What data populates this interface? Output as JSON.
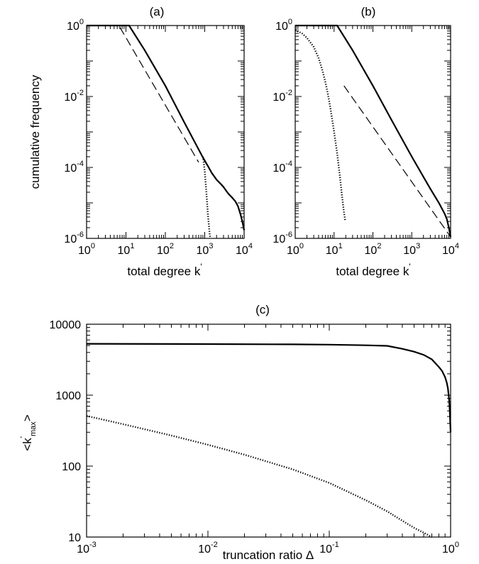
{
  "chart_data": [
    {
      "type": "line",
      "title": "(a)",
      "xlabel": "total degree k",
      "xlabel_prime": "'",
      "ylabel": "cumulative frequency",
      "x_scale": "log",
      "y_scale": "log",
      "xlim": [
        1,
        10000
      ],
      "ylim": [
        1e-06,
        1
      ],
      "x_ticks": [
        {
          "base": "10",
          "exp": "0"
        },
        {
          "base": "10",
          "exp": "1"
        },
        {
          "base": "10",
          "exp": "2"
        },
        {
          "base": "10",
          "exp": "3"
        },
        {
          "base": "10",
          "exp": "4"
        }
      ],
      "y_ticks": [
        {
          "base": "10",
          "exp": "0"
        },
        {
          "base": "10",
          "exp": "-2"
        },
        {
          "base": "10",
          "exp": "-4"
        },
        {
          "base": "10",
          "exp": "-6"
        }
      ],
      "grid": false,
      "series": [
        {
          "style": "solid",
          "x": [
            1,
            12,
            30,
            100,
            300,
            900,
            1200,
            1500,
            2000,
            2500,
            3000,
            3500,
            4000,
            5000,
            6000,
            7000,
            8000,
            9000,
            10000
          ],
          "y": [
            1,
            1,
            0.2,
            0.02,
            0.0019,
            0.00019,
            0.00011,
            7e-05,
            4.5e-05,
            3.5e-05,
            2.8e-05,
            2.2e-05,
            1.8e-05,
            1.4e-05,
            1.1e-05,
            8e-06,
            5e-06,
            3e-06,
            1.7e-06
          ]
        },
        {
          "style": "dotted",
          "x": [
            900,
            1000,
            1100,
            1200,
            1300,
            1350,
            1400
          ],
          "y": [
            0.0002,
            8e-05,
            2e-05,
            5e-06,
            1.8e-06,
            1.2e-06,
            1e-06
          ]
        },
        {
          "style": "dashed",
          "x": [
            7,
            700
          ],
          "y": [
            0.9,
            0.00014
          ]
        }
      ]
    },
    {
      "type": "line",
      "title": "(b)",
      "xlabel": "total degree k",
      "xlabel_prime": "'",
      "ylabel": "",
      "x_scale": "log",
      "y_scale": "log",
      "xlim": [
        1,
        10000
      ],
      "ylim": [
        1e-06,
        1
      ],
      "x_ticks": [
        {
          "base": "10",
          "exp": "0"
        },
        {
          "base": "10",
          "exp": "1"
        },
        {
          "base": "10",
          "exp": "2"
        },
        {
          "base": "10",
          "exp": "3"
        },
        {
          "base": "10",
          "exp": "4"
        }
      ],
      "y_ticks": [
        {
          "base": "10",
          "exp": "0"
        },
        {
          "base": "10",
          "exp": "-2"
        },
        {
          "base": "10",
          "exp": "-4"
        },
        {
          "base": "10",
          "exp": "-6"
        }
      ],
      "grid": false,
      "series": [
        {
          "style": "solid",
          "x": [
            1,
            12,
            30,
            100,
            300,
            1000,
            3000,
            5000,
            7000,
            8000,
            9000,
            10000
          ],
          "y": [
            1,
            1,
            0.2,
            0.02,
            0.0022,
            0.0002,
            2.5e-05,
            1e-05,
            5e-06,
            3.5e-06,
            2e-06,
            1.1e-06
          ]
        },
        {
          "style": "dotted",
          "x": [
            1,
            1.5,
            2,
            3,
            4,
            5,
            6,
            7,
            8,
            9,
            10,
            12,
            14,
            16,
            18,
            19.5
          ],
          "y": [
            0.75,
            0.6,
            0.45,
            0.25,
            0.12,
            0.055,
            0.025,
            0.011,
            0.005,
            0.0022,
            0.001,
            0.00025,
            6e-05,
            1.6e-05,
            5.5e-06,
            3e-06
          ]
        },
        {
          "style": "dashed",
          "x": [
            18,
            10000
          ],
          "y": [
            0.02,
            1.1e-06
          ]
        }
      ]
    },
    {
      "type": "line",
      "title": "(c)",
      "xlabel": "truncation ratio Δ",
      "ylabel_parts": {
        "open": "<k",
        "prime": "'",
        "sub": "max",
        "close": ">"
      },
      "x_scale": "log",
      "y_scale": "log",
      "xlim": [
        0.001,
        1
      ],
      "ylim": [
        10,
        10000
      ],
      "x_ticks": [
        {
          "base": "10",
          "exp": "-3"
        },
        {
          "base": "10",
          "exp": "-2"
        },
        {
          "base": "10",
          "exp": "-1"
        },
        {
          "base": "10",
          "exp": "0"
        }
      ],
      "y_ticks": [
        "10000",
        "1000",
        "100",
        "10"
      ],
      "grid": false,
      "series": [
        {
          "style": "solid",
          "x": [
            0.001,
            0.01,
            0.05,
            0.1,
            0.2,
            0.3,
            0.4,
            0.5,
            0.6,
            0.7,
            0.8,
            0.85,
            0.9,
            0.93,
            0.95,
            0.97,
            0.98,
            0.99,
            1.0
          ],
          "y": [
            5300,
            5250,
            5200,
            5150,
            5050,
            4950,
            4500,
            4100,
            3700,
            3200,
            2500,
            2200,
            1800,
            1500,
            1250,
            900,
            700,
            450,
            300
          ]
        },
        {
          "style": "dotted",
          "x": [
            0.001,
            0.002,
            0.005,
            0.01,
            0.02,
            0.05,
            0.1,
            0.2,
            0.3,
            0.4,
            0.5,
            0.6,
            0.7
          ],
          "y": [
            510,
            390,
            270,
            200,
            145,
            90,
            58,
            33,
            23,
            17,
            13.5,
            11.5,
            10
          ]
        }
      ]
    }
  ]
}
